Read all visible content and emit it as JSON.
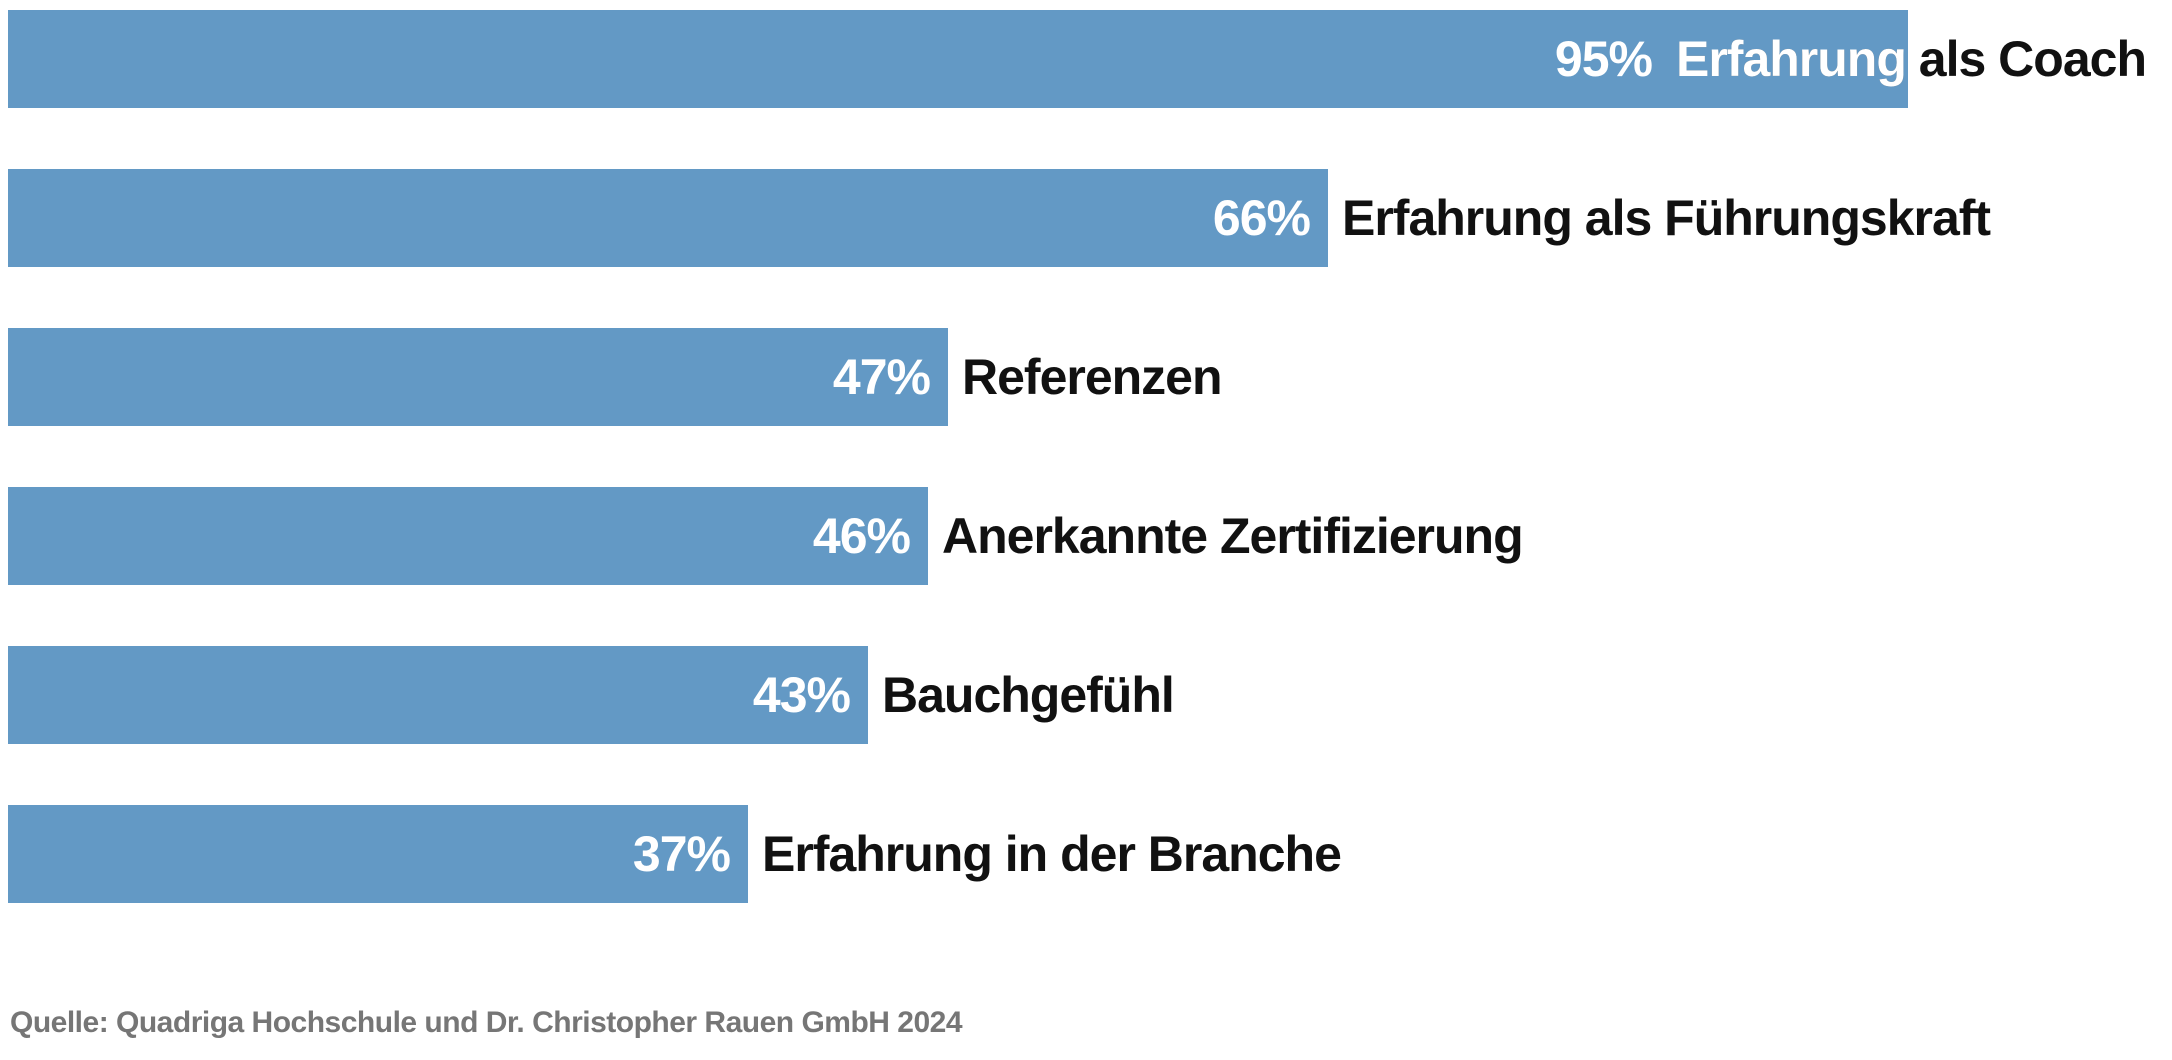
{
  "chart_data": {
    "type": "bar",
    "orientation": "horizontal",
    "title": "",
    "unit": "%",
    "xlim": [
      0,
      100
    ],
    "grid": false,
    "legend": false,
    "bar_color": "#6399c5",
    "value_text_color": "#ffffff",
    "label_text_color": "#111111",
    "categories": [
      "Erfahrung als Coach",
      "Erfahrung als Führungskraft",
      "Referenzen",
      "Anerkannte Zertifizierung",
      "Bauchgefühl",
      "Erfahrung in der Branche"
    ],
    "values": [
      95,
      66,
      47,
      46,
      43,
      37
    ],
    "bars": [
      {
        "label": "Erfahrung als Coach",
        "value": 95,
        "value_text": "95%",
        "label_inside": true
      },
      {
        "label": "Erfahrung als Führungskraft",
        "value": 66,
        "value_text": "66%",
        "label_inside": false
      },
      {
        "label": "Referenzen",
        "value": 47,
        "value_text": "47%",
        "label_inside": false
      },
      {
        "label": "Anerkannte Zertifizierung",
        "value": 46,
        "value_text": "46%",
        "label_inside": false
      },
      {
        "label": "Bauchgefühl",
        "value": 43,
        "value_text": "43%",
        "label_inside": false
      },
      {
        "label": "Erfahrung in der Branche",
        "value": 37,
        "value_text": "37%",
        "label_inside": false
      }
    ],
    "source": "Quelle: Quadriga Hochschule und Dr. Christopher Rauen GmbH 2024"
  }
}
